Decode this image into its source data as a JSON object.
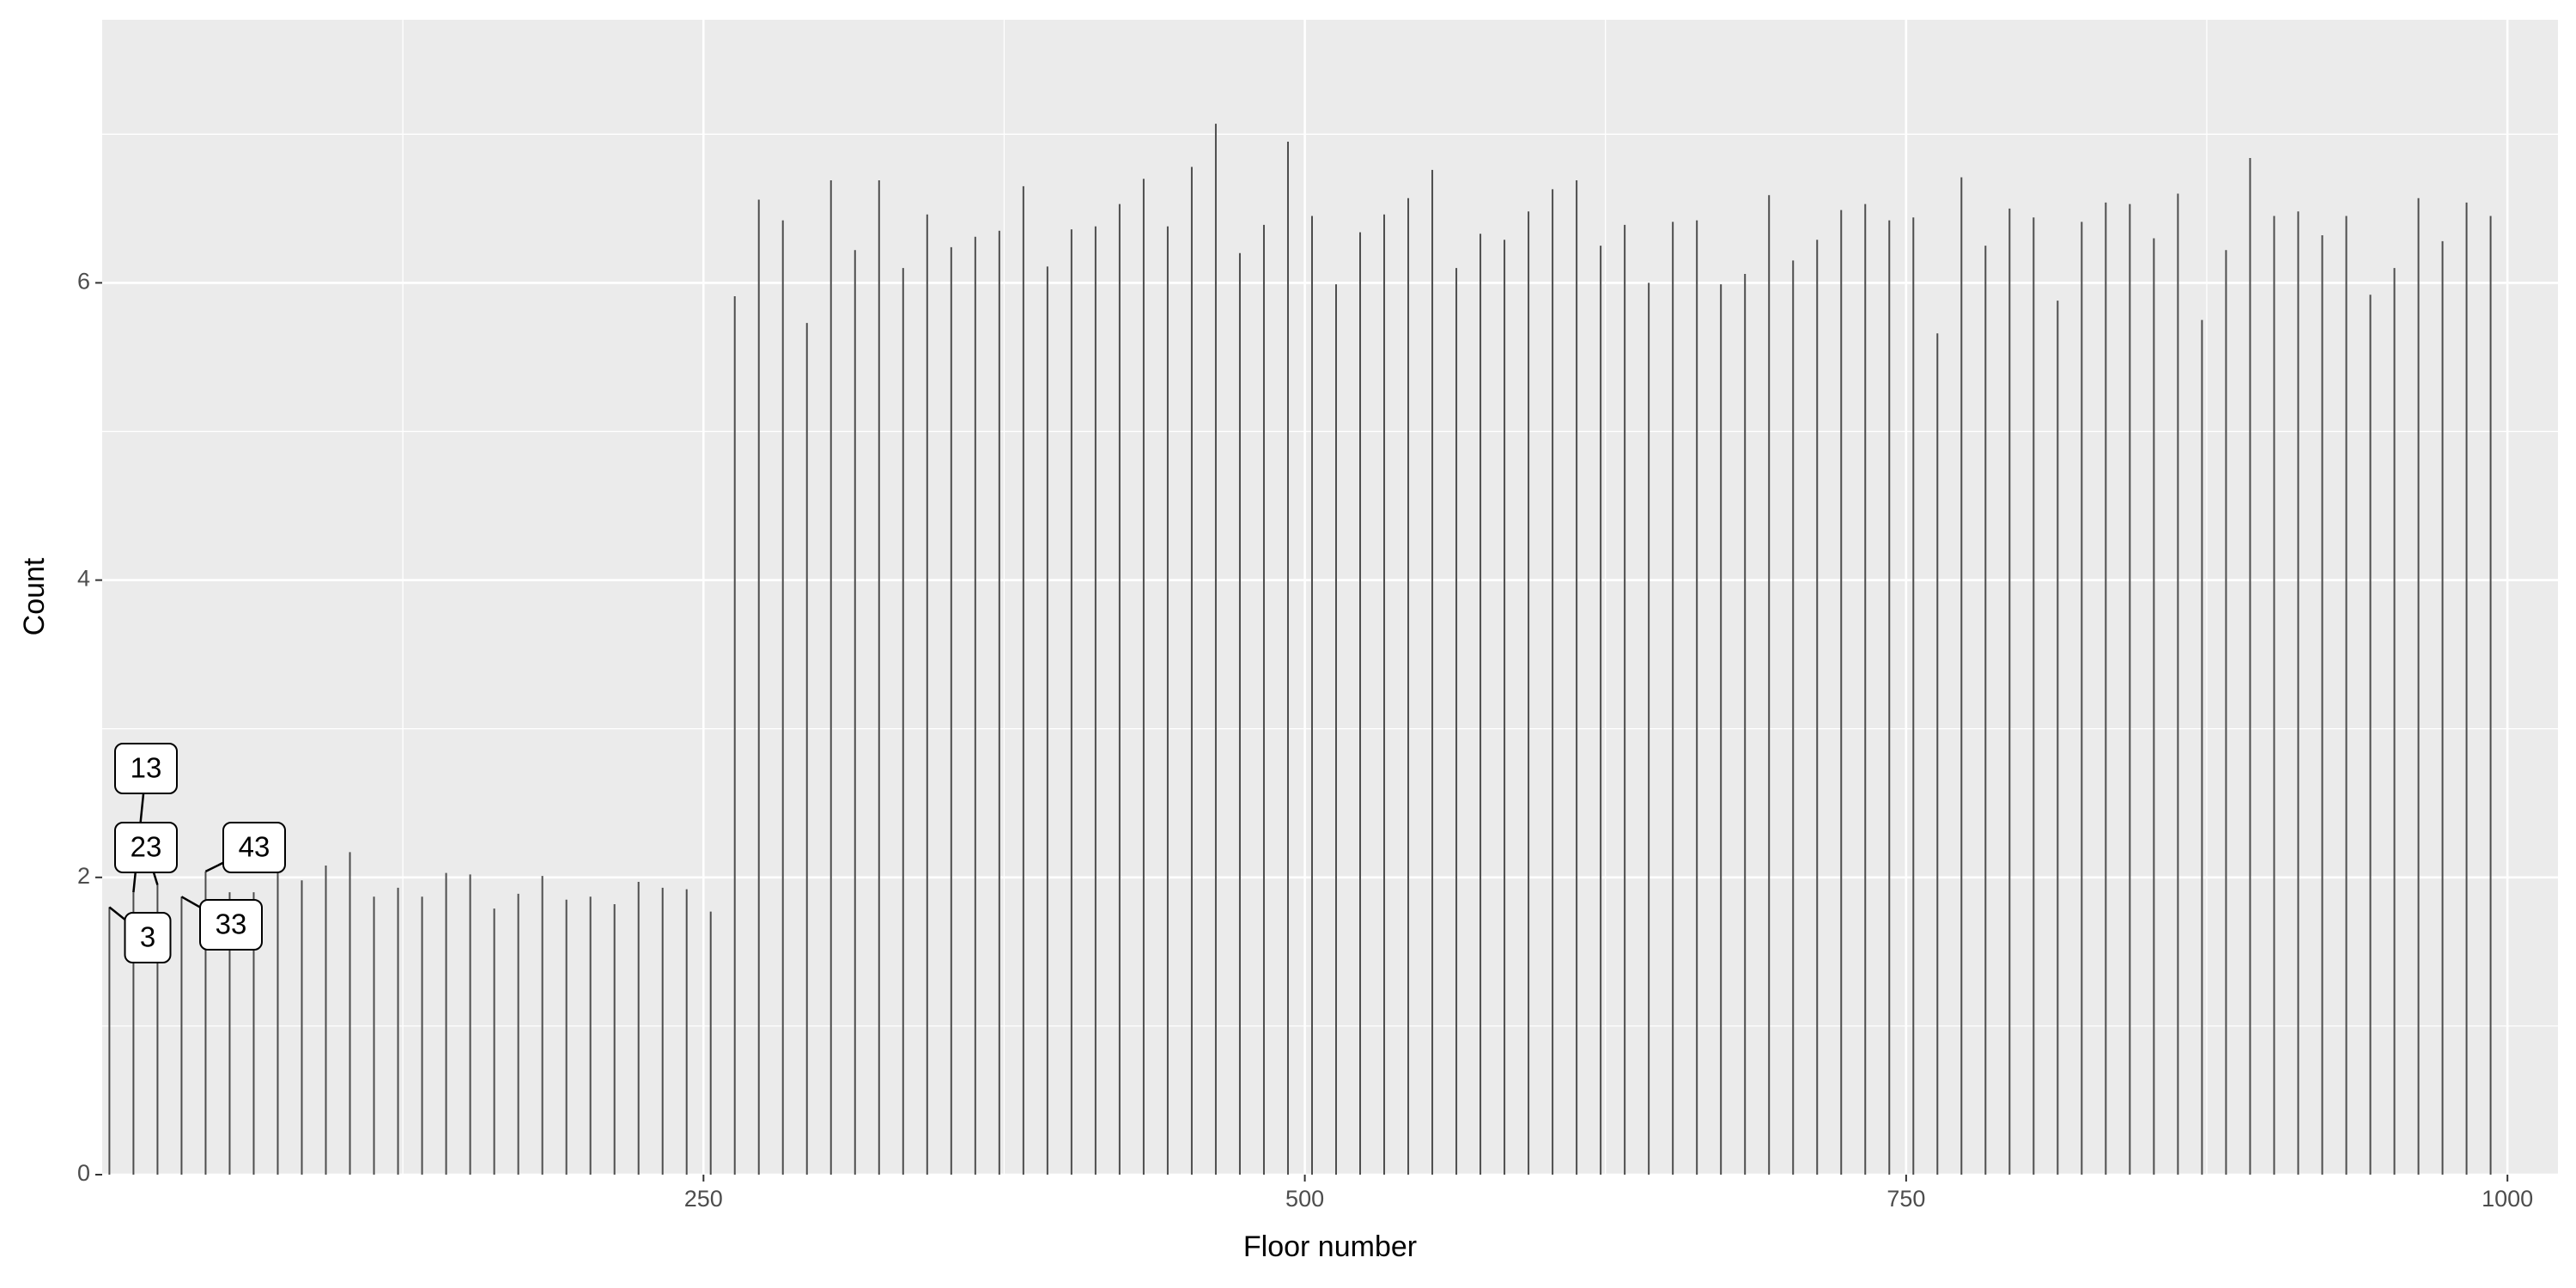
{
  "chart_data": {
    "type": "spike",
    "x_label": "Floor number",
    "y_label": "Count",
    "x": [
      3,
      13,
      23,
      33,
      43,
      53,
      63,
      73,
      83,
      93,
      103,
      113,
      123,
      133,
      143,
      153,
      163,
      173,
      183,
      193,
      203,
      213,
      223,
      233,
      243,
      253,
      263,
      273,
      283,
      293,
      303,
      313,
      323,
      333,
      343,
      353,
      363,
      373,
      383,
      393,
      403,
      413,
      423,
      433,
      443,
      453,
      463,
      473,
      483,
      493,
      503,
      513,
      523,
      533,
      543,
      553,
      563,
      573,
      583,
      593,
      603,
      613,
      623,
      633,
      643,
      653,
      663,
      673,
      683,
      693,
      703,
      713,
      723,
      733,
      743,
      753,
      763,
      773,
      783,
      793,
      803,
      813,
      823,
      833,
      843,
      853,
      863,
      873,
      883,
      893,
      903,
      913,
      923,
      933,
      943,
      953,
      963,
      973,
      983,
      993
    ],
    "values": [
      1.8,
      1.9,
      1.95,
      1.87,
      2.04,
      1.9,
      1.9,
      2.04,
      1.98,
      2.08,
      2.17,
      1.87,
      1.93,
      1.87,
      2.03,
      2.02,
      1.79,
      1.89,
      2.01,
      1.85,
      1.87,
      1.82,
      1.97,
      1.93,
      1.92,
      1.77,
      5.91,
      6.56,
      6.42,
      5.73,
      6.69,
      6.22,
      6.69,
      6.1,
      6.46,
      6.24,
      6.31,
      6.35,
      6.65,
      6.11,
      6.36,
      6.38,
      6.53,
      6.7,
      6.38,
      6.78,
      7.07,
      6.2,
      6.39,
      6.95,
      6.45,
      5.99,
      6.34,
      6.46,
      6.57,
      6.76,
      6.1,
      6.33,
      6.29,
      6.48,
      6.63,
      6.69,
      6.25,
      6.39,
      6.0,
      6.41,
      6.42,
      5.99,
      6.06,
      6.59,
      6.15,
      6.29,
      6.49,
      6.53,
      6.42,
      6.44,
      5.66,
      6.71,
      6.25,
      6.5,
      6.44,
      5.88,
      6.41,
      6.54,
      6.53,
      6.3,
      6.6,
      5.75,
      6.22,
      6.84,
      6.45,
      6.48,
      6.32,
      6.45,
      5.92,
      6.1,
      6.57,
      6.28,
      6.54,
      6.45
    ],
    "color": "#4d4d4d",
    "annotations": [
      {
        "x": 3,
        "label": "3"
      },
      {
        "x": 13,
        "label": "13"
      },
      {
        "x": 23,
        "label": "23"
      },
      {
        "x": 33,
        "label": "33"
      },
      {
        "x": 43,
        "label": "43"
      }
    ],
    "xlim": [
      0,
      1021
    ],
    "ylim": [
      0,
      7.77
    ],
    "xticks": [
      250,
      500,
      750,
      1000
    ],
    "yticks": [
      0,
      2,
      4,
      6
    ],
    "x_minor": [
      125,
      375,
      625,
      875
    ],
    "y_minor": [
      1,
      3,
      5,
      7
    ],
    "grid": true,
    "panel_color": "#ebebeb"
  }
}
